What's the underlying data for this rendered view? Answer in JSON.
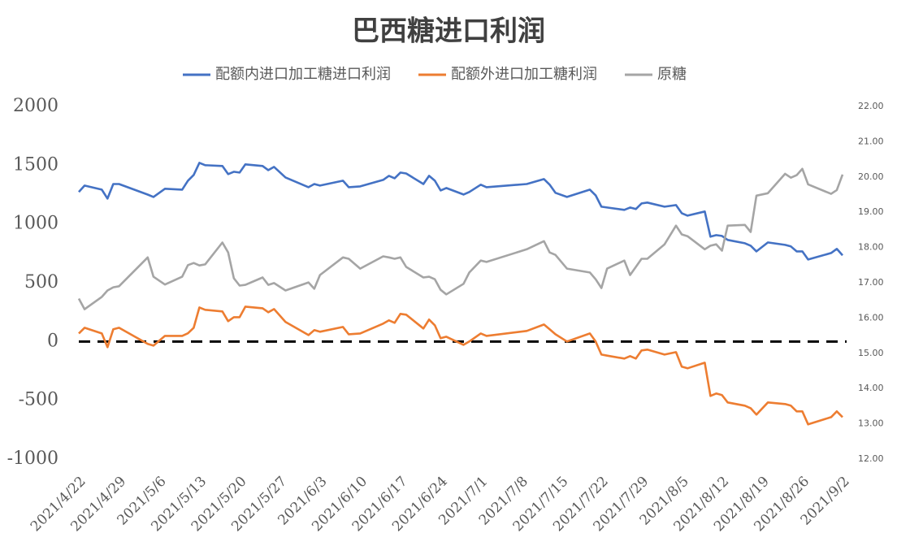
{
  "chart_data": {
    "type": "line",
    "title": "巴西糖进口利润",
    "x": [
      "2021/4/22",
      "2021/4/23",
      "2021/4/26",
      "2021/4/27",
      "2021/4/28",
      "2021/4/29",
      "2021/5/4",
      "2021/5/5",
      "2021/5/7",
      "2021/5/10",
      "2021/5/11",
      "2021/5/12",
      "2021/5/13",
      "2021/5/14",
      "2021/5/17",
      "2021/5/18",
      "2021/5/19",
      "2021/5/20",
      "2021/5/21",
      "2021/5/24",
      "2021/5/25",
      "2021/5/26",
      "2021/5/28",
      "2021/6/1",
      "2021/6/2",
      "2021/6/3",
      "2021/6/7",
      "2021/6/8",
      "2021/6/10",
      "2021/6/14",
      "2021/6/15",
      "2021/6/16",
      "2021/6/17",
      "2021/6/18",
      "2021/6/21",
      "2021/6/22",
      "2021/6/23",
      "2021/6/24",
      "2021/6/25",
      "2021/6/28",
      "2021/6/29",
      "2021/7/1",
      "2021/7/2",
      "2021/7/9",
      "2021/7/12",
      "2021/7/13",
      "2021/7/14",
      "2021/7/16",
      "2021/7/20",
      "2021/7/21",
      "2021/7/22",
      "2021/7/23",
      "2021/7/26",
      "2021/7/27",
      "2021/7/28",
      "2021/7/29",
      "2021/7/30",
      "2021/8/2",
      "2021/8/4",
      "2021/8/5",
      "2021/8/6",
      "2021/8/9",
      "2021/8/10",
      "2021/8/11",
      "2021/8/12",
      "2021/8/13",
      "2021/8/16",
      "2021/8/17",
      "2021/8/18",
      "2021/8/20",
      "2021/8/23",
      "2021/8/24",
      "2021/8/25",
      "2021/8/26",
      "2021/8/27",
      "2021/8/31",
      "2021/9/1",
      "2021/9/2"
    ],
    "series": [
      {
        "name": "配额内进口加工糖进口利润",
        "color": "#4472c4",
        "axis": "y",
        "values": [
          1272,
          1327,
          1292,
          1216,
          1340,
          1340,
          1250,
          1230,
          1300,
          1292,
          1368,
          1417,
          1520,
          1500,
          1493,
          1424,
          1444,
          1437,
          1507,
          1493,
          1458,
          1486,
          1396,
          1313,
          1340,
          1327,
          1368,
          1313,
          1320,
          1375,
          1410,
          1389,
          1437,
          1430,
          1340,
          1410,
          1368,
          1285,
          1306,
          1251,
          1272,
          1334,
          1313,
          1340,
          1382,
          1334,
          1265,
          1230,
          1292,
          1244,
          1147,
          1140,
          1120,
          1140,
          1127,
          1175,
          1182,
          1147,
          1161,
          1092,
          1071,
          1106,
          892,
          905,
          898,
          864,
          836,
          815,
          767,
          843,
          822,
          809,
          767,
          767,
          698,
          753,
          788,
          733
        ]
      },
      {
        "name": "配额外进口加工糖利润",
        "color": "#ed7d31",
        "axis": "y",
        "values": [
          69,
          117,
          69,
          -48,
          104,
          117,
          -20,
          -35,
          48,
          48,
          70,
          117,
          290,
          270,
          256,
          173,
          207,
          207,
          297,
          283,
          249,
          276,
          166,
          55,
          97,
          83,
          124,
          62,
          69,
          152,
          180,
          159,
          235,
          228,
          111,
          187,
          138,
          28,
          41,
          -28,
          0,
          69,
          48,
          90,
          145,
          104,
          62,
          0,
          69,
          0,
          -111,
          -120,
          -145,
          -124,
          -145,
          -76,
          -69,
          -111,
          -90,
          -214,
          -228,
          -180,
          -463,
          -442,
          -456,
          -518,
          -546,
          -567,
          -622,
          -518,
          -532,
          -546,
          -594,
          -594,
          -705,
          -643,
          -594,
          -643
        ]
      },
      {
        "name": "原糖",
        "color": "#a5a5a5",
        "axis": "y2",
        "values": [
          16.55,
          16.25,
          16.6,
          16.78,
          16.87,
          16.9,
          17.72,
          17.17,
          16.95,
          17.17,
          17.5,
          17.56,
          17.49,
          17.52,
          18.14,
          17.86,
          17.13,
          16.92,
          16.94,
          17.15,
          16.94,
          16.99,
          16.78,
          17.01,
          16.83,
          17.22,
          17.72,
          17.68,
          17.4,
          17.75,
          17.72,
          17.68,
          17.72,
          17.45,
          17.15,
          17.17,
          17.1,
          16.8,
          16.67,
          16.97,
          17.29,
          17.63,
          17.59,
          17.95,
          18.18,
          17.86,
          17.79,
          17.4,
          17.29,
          17.1,
          16.85,
          17.4,
          17.63,
          17.22,
          17.45,
          17.68,
          17.68,
          18.09,
          18.62,
          18.37,
          18.32,
          17.95,
          18.05,
          18.09,
          17.91,
          18.62,
          18.64,
          18.44,
          19.47,
          19.54,
          20.09,
          19.98,
          20.05,
          20.23,
          19.79,
          19.52,
          19.63,
          20.07
        ]
      }
    ],
    "xlim": [
      "2021/4/22",
      "2021/9/2"
    ],
    "xticks": [
      "2021/4/22",
      "2021/4/29",
      "2021/5/6",
      "2021/5/13",
      "2021/5/20",
      "2021/5/27",
      "2021/6/3",
      "2021/6/10",
      "2021/6/17",
      "2021/6/24",
      "2021/7/1",
      "2021/7/8",
      "2021/7/15",
      "2021/7/22",
      "2021/7/29",
      "2021/8/5",
      "2021/8/12",
      "2021/8/19",
      "2021/8/26",
      "2021/9/2"
    ],
    "ylim": [
      -1000,
      2000
    ],
    "yticks": [
      -1000,
      -500,
      0,
      500,
      1000,
      1500,
      2000
    ],
    "y2lim": [
      12,
      22
    ],
    "y2ticks": [
      {
        "value": 12,
        "label": "12.00"
      },
      {
        "value": 13,
        "label": "13.00"
      },
      {
        "value": 14,
        "label": "14.00"
      },
      {
        "value": 15,
        "label": "15.00"
      },
      {
        "value": 16,
        "label": "16.00"
      },
      {
        "value": 17,
        "label": "17.00"
      },
      {
        "value": 18,
        "label": "18.00"
      },
      {
        "value": 19,
        "label": "19.00"
      },
      {
        "value": 20,
        "label": "20.00"
      },
      {
        "value": 21,
        "label": "21.00"
      },
      {
        "value": 22,
        "label": "22.00"
      }
    ],
    "reference_line": 0,
    "grid": false,
    "legend": "top"
  }
}
